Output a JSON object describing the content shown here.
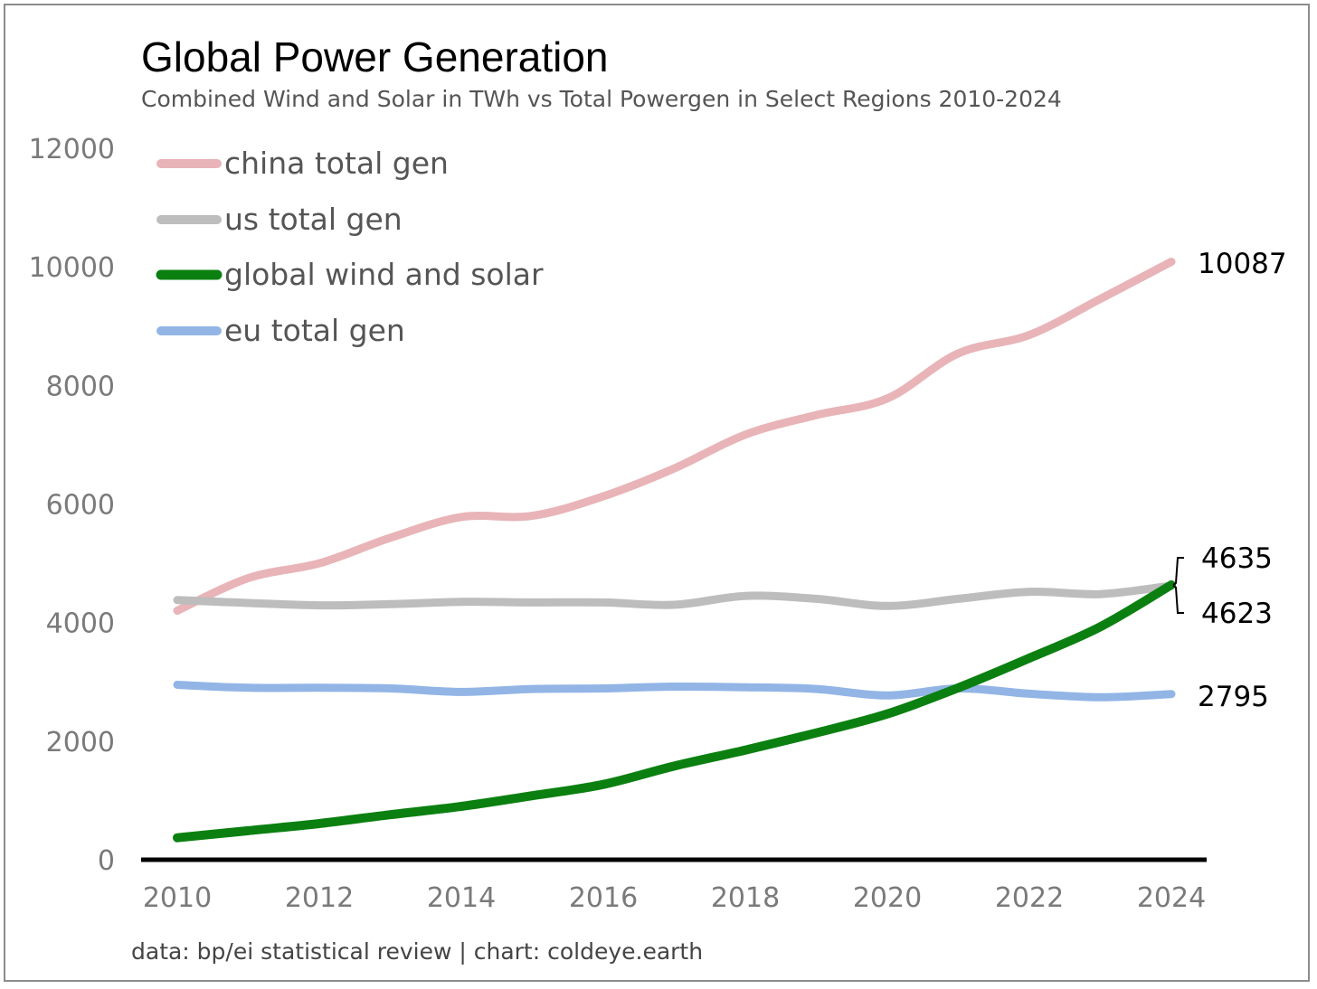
{
  "chart_data": {
    "type": "line",
    "title": "Global Power Generation",
    "subtitle": "Combined Wind and Solar in TWh vs Total Powergen in Select Regions 2010-2024",
    "x": [
      2010,
      2011,
      2012,
      2013,
      2014,
      2015,
      2016,
      2017,
      2018,
      2019,
      2020,
      2021,
      2022,
      2023,
      2024
    ],
    "xticks": [
      "2010",
      "2012",
      "2014",
      "2016",
      "2018",
      "2020",
      "2022",
      "2024"
    ],
    "xlim": [
      2010,
      2024
    ],
    "ylim": [
      0,
      12000
    ],
    "yticks": [
      "0",
      "2000",
      "4000",
      "6000",
      "8000",
      "10000",
      "12000"
    ],
    "grid": false,
    "legend_position": "top-left",
    "series": [
      {
        "name": "china total gen",
        "color": "#e8b4b8",
        "width": 9,
        "values": [
          4200,
          4750,
          5000,
          5430,
          5780,
          5800,
          6130,
          6600,
          7170,
          7500,
          7780,
          8540,
          8850,
          9460,
          10087
        ],
        "end_label": "10087"
      },
      {
        "name": "us total gen",
        "color": "#bdbdbd",
        "width": 9,
        "values": [
          4380,
          4330,
          4290,
          4310,
          4350,
          4340,
          4340,
          4300,
          4450,
          4400,
          4280,
          4400,
          4520,
          4480,
          4623
        ],
        "end_label": "4623"
      },
      {
        "name": "global wind and solar",
        "color": "#0b8010",
        "width": 10,
        "values": [
          370,
          490,
          610,
          760,
          900,
          1080,
          1270,
          1580,
          1850,
          2140,
          2460,
          2900,
          3400,
          3930,
          4635
        ],
        "end_label": "4635"
      },
      {
        "name": "eu total gen",
        "color": "#92b5e6",
        "width": 9,
        "values": [
          2950,
          2900,
          2900,
          2890,
          2830,
          2880,
          2890,
          2920,
          2910,
          2880,
          2770,
          2890,
          2800,
          2740,
          2795
        ],
        "end_label": "2795"
      }
    ],
    "source": "data: bp/ei statistical review | chart: coldeye.earth"
  }
}
